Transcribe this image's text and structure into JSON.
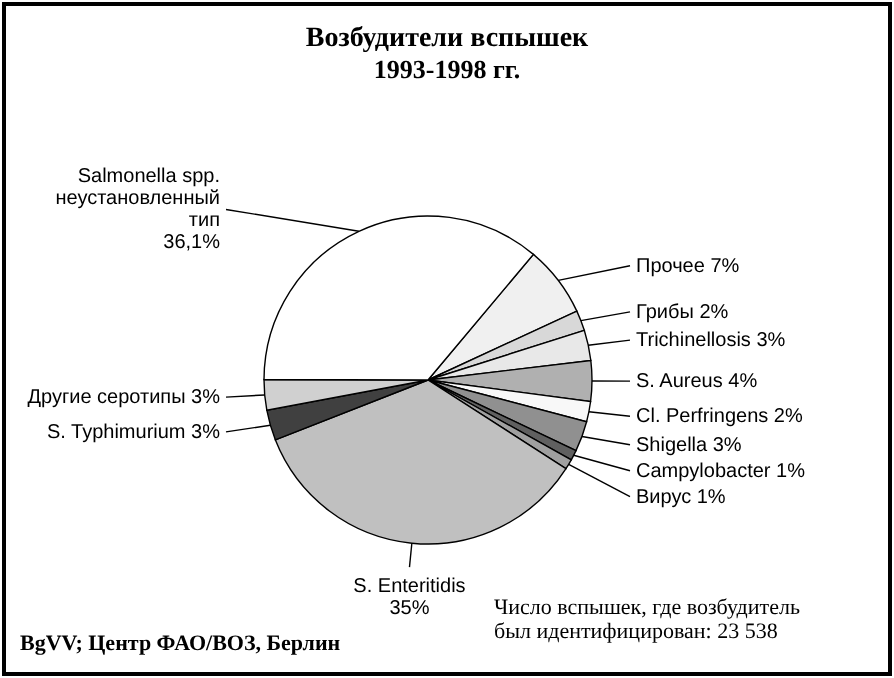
{
  "chart_data": {
    "type": "pie",
    "title": "Возбудители вспышек",
    "subtitle": "1993-1998 гг.",
    "categories": [
      "Прочее",
      "Грибы",
      "Trichinellosis",
      "S. Aureus",
      "Cl. Perfringens",
      "Shigella",
      "Campylobacter",
      "Вирус",
      "S. Enteritidis",
      "S. Typhimurium",
      "Другие серотипы",
      "Salmonella spp. неустановленный тип"
    ],
    "values": [
      7,
      2,
      3,
      4,
      2,
      3,
      1,
      1,
      35,
      3,
      3,
      36.1
    ],
    "value_labels": [
      "7%",
      "2%",
      "3%",
      "4%",
      "2%",
      "3%",
      "1%",
      "1%",
      "35%",
      "3%",
      "3%",
      "36,1%"
    ],
    "colors": [
      "#f0f0f0",
      "#d8d8d8",
      "#e8e8e8",
      "#b0b0b0",
      "#f8f8f8",
      "#909090",
      "#606060",
      "#a0a0a0",
      "#c0c0c0",
      "#404040",
      "#d0d0d0",
      "#ffffff"
    ],
    "annotations": [
      "BgVV; Центр ФАО/ВОЗ, Берлин",
      "Число вспышек, где возбудитель был идентифицирован: 23 538"
    ]
  }
}
